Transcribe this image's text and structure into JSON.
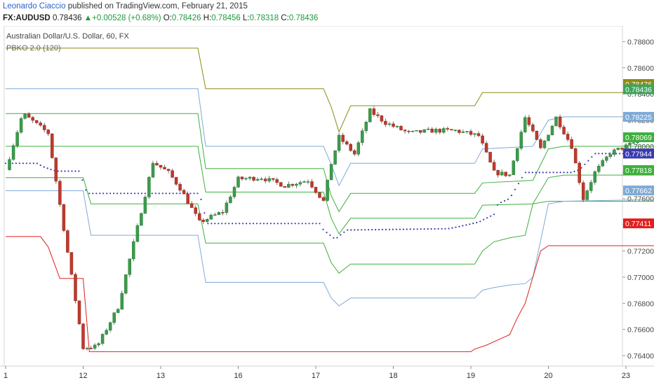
{
  "header": {
    "author": "Leonardo Ciaccio",
    "published_text": "published on TradingView.com, February 21, 2015",
    "symbol": "FX:AUDUSD",
    "last": "0.78436",
    "change_arrow": "▲",
    "change": "+0.00528 (+0.68%)",
    "open_label": "O:",
    "open": "0.78426",
    "high_label": "H:",
    "high": "0.78456",
    "low_label": "L:",
    "low": "0.78318",
    "close_label": "C:",
    "close": "0.78436"
  },
  "legend": {
    "title": "Australian Dollar/U.S. Dollar, 60, FX",
    "indicator": "PBKO 2.0 (120)"
  },
  "chart_data": {
    "type": "candlestick",
    "y_axis": {
      "ticks": [
        "0.78800",
        "0.78600",
        "0.78400",
        "0.78200",
        "0.78000",
        "0.77800",
        "0.77600",
        "0.77400",
        "0.77200",
        "0.77000",
        "0.76800",
        "0.76600",
        "0.76400"
      ],
      "range": [
        0.7632,
        0.7892
      ],
      "position": "right"
    },
    "x_axis": {
      "ticks": [
        {
          "label": "1",
          "day": 0
        },
        {
          "label": "12",
          "day": 1
        },
        {
          "label": "13",
          "day": 2
        },
        {
          "label": "16",
          "day": 3
        },
        {
          "label": "17",
          "day": 4
        },
        {
          "label": "18",
          "day": 5
        },
        {
          "label": "19",
          "day": 6
        },
        {
          "label": "20",
          "day": 7
        },
        {
          "label": "23",
          "day": 8
        }
      ]
    },
    "price_labels": [
      {
        "value": "0.78476",
        "color": "#8d8a12"
      },
      {
        "value": "0.78436",
        "color": "#3ea35a"
      },
      {
        "value": "0.78225",
        "color": "#7faad6"
      },
      {
        "value": "0.78069",
        "color": "#3cb03c"
      },
      {
        "value": "0.77944",
        "color": "#3a3ab0"
      },
      {
        "value": "0.77818",
        "color": "#3cb03c"
      },
      {
        "value": "0.77662",
        "color": "#7faad6"
      },
      {
        "value": "0.77411",
        "color": "#e02020"
      }
    ],
    "series": [
      {
        "kind": "ohlc",
        "path": [
          [
            0,
            0.7782
          ],
          [
            0.22,
            0.7825
          ],
          [
            0.55,
            0.781
          ],
          [
            1.0,
            0.7646
          ],
          [
            1.18,
            0.7647
          ],
          [
            1.45,
            0.7677
          ],
          [
            1.7,
            0.7738
          ],
          [
            1.9,
            0.7788
          ],
          [
            2.1,
            0.778
          ],
          [
            2.25,
            0.7768
          ],
          [
            2.5,
            0.7742
          ],
          [
            2.8,
            0.775
          ],
          [
            3.0,
            0.7775
          ],
          [
            3.3,
            0.7776
          ],
          [
            3.6,
            0.777
          ],
          [
            3.9,
            0.7774
          ],
          [
            4.1,
            0.7758
          ],
          [
            4.2,
            0.7787
          ],
          [
            4.3,
            0.7807
          ],
          [
            4.5,
            0.7794
          ],
          [
            4.7,
            0.7827
          ],
          [
            4.9,
            0.7818
          ],
          [
            5.2,
            0.781
          ],
          [
            5.5,
            0.7812
          ],
          [
            5.8,
            0.7812
          ],
          [
            6.1,
            0.7808
          ],
          [
            6.3,
            0.778
          ],
          [
            6.5,
            0.7778
          ],
          [
            6.7,
            0.7822
          ],
          [
            6.9,
            0.7798
          ],
          [
            7.1,
            0.7822
          ],
          [
            7.3,
            0.78
          ],
          [
            7.45,
            0.776
          ],
          [
            7.6,
            0.778
          ],
          [
            7.8,
            0.7795
          ],
          [
            8.0,
            0.78
          ],
          [
            8.2,
            0.7805
          ],
          [
            8.5,
            0.781
          ],
          [
            8.8,
            0.7812
          ],
          [
            9.1,
            0.783
          ],
          [
            9.2,
            0.784
          ],
          [
            9.3,
            0.7846
          ],
          [
            9.45,
            0.7829
          ],
          [
            9.6,
            0.7835
          ],
          [
            9.8,
            0.7843
          ]
        ],
        "volatility": 0.00018
      },
      {
        "kind": "line",
        "name": "upper2",
        "color": "#8d8a12",
        "steps": [
          [
            0,
            0.7875
          ],
          [
            2.48,
            0.7875
          ],
          [
            2.58,
            0.7844
          ],
          [
            4.1,
            0.7844
          ],
          [
            4.2,
            0.783
          ],
          [
            4.3,
            0.7811
          ],
          [
            4.45,
            0.7831
          ],
          [
            6.05,
            0.7831
          ],
          [
            6.15,
            0.7841
          ],
          [
            9.33,
            0.7841
          ],
          [
            9.43,
            0.78476
          ],
          [
            9.8,
            0.78476
          ]
        ]
      },
      {
        "kind": "line",
        "name": "upper1",
        "color": "#7faad6",
        "steps": [
          [
            0,
            0.7844
          ],
          [
            2.48,
            0.7844
          ],
          [
            2.58,
            0.78
          ],
          [
            4.1,
            0.78
          ],
          [
            4.2,
            0.7786
          ],
          [
            4.3,
            0.777
          ],
          [
            4.45,
            0.7787
          ],
          [
            6.05,
            0.7787
          ],
          [
            6.15,
            0.7798
          ],
          [
            6.8,
            0.78
          ],
          [
            7.0,
            0.782
          ],
          [
            7.2,
            0.78225
          ],
          [
            9.8,
            0.78225
          ]
        ]
      },
      {
        "kind": "line",
        "name": "upper-mid",
        "color": "#3cb03c",
        "steps": [
          [
            0,
            0.7825
          ],
          [
            2.48,
            0.7825
          ],
          [
            2.58,
            0.7783
          ],
          [
            4.1,
            0.7783
          ],
          [
            4.2,
            0.7762
          ],
          [
            4.3,
            0.775
          ],
          [
            4.45,
            0.7764
          ],
          [
            6.05,
            0.7764
          ],
          [
            6.15,
            0.7772
          ],
          [
            6.8,
            0.7774
          ],
          [
            7.0,
            0.7798
          ],
          [
            7.2,
            0.78
          ],
          [
            9.0,
            0.78
          ],
          [
            9.2,
            0.78069
          ],
          [
            9.8,
            0.78069
          ]
        ]
      },
      {
        "kind": "line",
        "name": "lower-mid",
        "color": "#3cb03c",
        "steps": [
          [
            0,
            0.78
          ],
          [
            2.48,
            0.78
          ],
          [
            2.58,
            0.7765
          ],
          [
            4.1,
            0.7765
          ],
          [
            4.2,
            0.7745
          ],
          [
            4.3,
            0.7733
          ],
          [
            4.45,
            0.7745
          ],
          [
            6.05,
            0.7745
          ],
          [
            6.15,
            0.7755
          ],
          [
            6.8,
            0.7756
          ],
          [
            7.0,
            0.7776
          ],
          [
            7.2,
            0.7778
          ],
          [
            9.0,
            0.7778
          ],
          [
            9.2,
            0.77818
          ],
          [
            9.8,
            0.77818
          ]
        ]
      },
      {
        "kind": "line",
        "name": "lower2",
        "color": "#3cb03c",
        "steps": [
          [
            0,
            0.7776
          ],
          [
            1.0,
            0.7776
          ],
          [
            1.1,
            0.7756
          ],
          [
            2.48,
            0.7756
          ],
          [
            2.58,
            0.7726
          ],
          [
            4.1,
            0.7726
          ],
          [
            4.2,
            0.7711
          ],
          [
            4.3,
            0.7703
          ],
          [
            4.45,
            0.771
          ],
          [
            6.05,
            0.771
          ],
          [
            6.15,
            0.772
          ],
          [
            6.3,
            0.7727
          ],
          [
            6.5,
            0.773
          ],
          [
            6.7,
            0.7732
          ],
          [
            6.8,
            0.7756
          ],
          [
            7.0,
            0.7758
          ],
          [
            9.0,
            0.7758
          ],
          [
            9.2,
            0.77818
          ]
        ]
      },
      {
        "kind": "line",
        "name": "lower1",
        "color": "#7faad6",
        "steps": [
          [
            0,
            0.7766
          ],
          [
            1.0,
            0.7766
          ],
          [
            1.1,
            0.7732
          ],
          [
            2.48,
            0.7732
          ],
          [
            2.58,
            0.7696
          ],
          [
            4.1,
            0.7696
          ],
          [
            4.2,
            0.7684
          ],
          [
            4.3,
            0.7678
          ],
          [
            4.45,
            0.7684
          ],
          [
            6.05,
            0.7684
          ],
          [
            6.15,
            0.769
          ],
          [
            6.3,
            0.7692
          ],
          [
            6.5,
            0.7694
          ],
          [
            6.7,
            0.7695
          ],
          [
            6.8,
            0.77
          ],
          [
            7.0,
            0.7756
          ],
          [
            7.2,
            0.7758
          ],
          [
            9.0,
            0.776
          ],
          [
            9.2,
            0.77662
          ],
          [
            9.8,
            0.77662
          ]
        ]
      },
      {
        "kind": "line",
        "name": "bottom",
        "color": "#e02020",
        "steps": [
          [
            0,
            0.7731
          ],
          [
            0.45,
            0.7731
          ],
          [
            0.55,
            0.7723
          ],
          [
            0.7,
            0.7699
          ],
          [
            1.0,
            0.7699
          ],
          [
            1.08,
            0.7643
          ],
          [
            4.1,
            0.7643
          ],
          [
            6.0,
            0.7643
          ],
          [
            6.05,
            0.7645
          ],
          [
            6.2,
            0.7648
          ],
          [
            6.35,
            0.7652
          ],
          [
            6.5,
            0.7656
          ],
          [
            6.6,
            0.7669
          ],
          [
            6.7,
            0.768
          ],
          [
            6.8,
            0.77
          ],
          [
            6.9,
            0.772
          ],
          [
            7.0,
            0.7724
          ],
          [
            9.0,
            0.7724
          ],
          [
            9.2,
            0.77411
          ],
          [
            9.8,
            0.77411
          ]
        ]
      },
      {
        "kind": "dots",
        "name": "dotted-mid",
        "color": "#3a3ab0",
        "steps": [
          [
            0,
            0.7787
          ],
          [
            0.4,
            0.7787
          ],
          [
            0.5,
            0.7784
          ],
          [
            0.65,
            0.7781
          ],
          [
            0.95,
            0.7781
          ],
          [
            1.05,
            0.7764
          ],
          [
            2.5,
            0.7764
          ],
          [
            2.6,
            0.7741
          ],
          [
            3.9,
            0.7741
          ],
          [
            4.05,
            0.7741
          ],
          [
            4.1,
            0.7736
          ],
          [
            4.25,
            0.7729
          ],
          [
            4.4,
            0.7736
          ],
          [
            5.7,
            0.7737
          ],
          [
            5.8,
            0.7738
          ],
          [
            6.1,
            0.7742
          ],
          [
            6.3,
            0.7748
          ],
          [
            6.35,
            0.7756
          ],
          [
            6.5,
            0.776
          ],
          [
            6.7,
            0.778
          ],
          [
            7.3,
            0.778
          ],
          [
            7.4,
            0.7782
          ],
          [
            7.5,
            0.7788
          ],
          [
            7.6,
            0.77944
          ],
          [
            9.8,
            0.77944
          ]
        ]
      }
    ]
  }
}
